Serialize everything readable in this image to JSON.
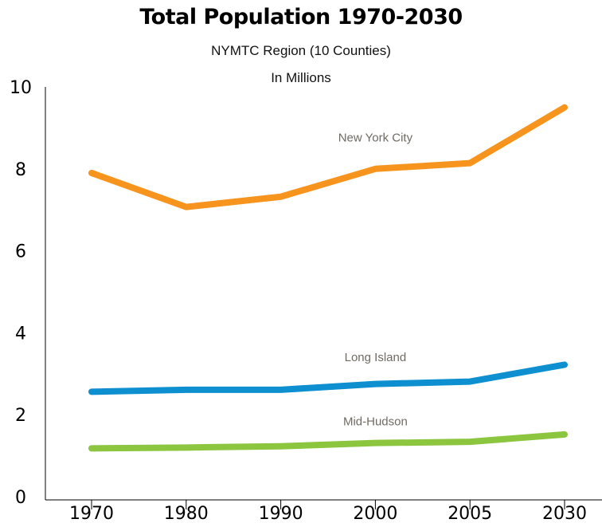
{
  "chart_data": {
    "type": "line",
    "title": "Total Population 1970-2030",
    "subtitle": "NYMTC Region (10 Counties)",
    "unit_label": "In Millions",
    "categories": [
      "1970",
      "1980",
      "1990",
      "2000",
      "2005",
      "2030"
    ],
    "y_ticks": [
      "0",
      "2",
      "4",
      "6",
      "8",
      "10"
    ],
    "ylim": [
      0,
      10
    ],
    "grid": false,
    "series": [
      {
        "name": "New York City",
        "color": "#f7941d",
        "values": [
          7.9,
          7.07,
          7.32,
          8.0,
          8.14,
          9.5
        ]
      },
      {
        "name": "Long Island",
        "color": "#0d8fd0",
        "values": [
          2.56,
          2.61,
          2.61,
          2.75,
          2.81,
          3.22
        ]
      },
      {
        "name": "Mid-Hudson",
        "color": "#8cc63f",
        "values": [
          1.18,
          1.2,
          1.23,
          1.31,
          1.34,
          1.52
        ]
      }
    ]
  }
}
